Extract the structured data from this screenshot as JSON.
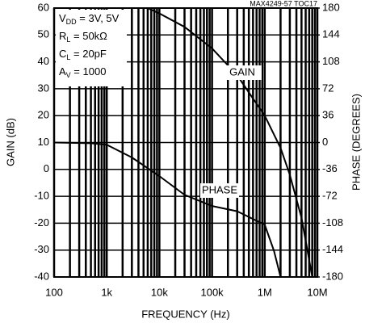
{
  "chart_data": {
    "type": "line",
    "code": "MAX4249-57 TOC17",
    "x_label": "FREQUENCY (Hz)",
    "y_label": "GAIN (dB)",
    "y2_label": "PHASE (DEGREES)",
    "x_scale": "log",
    "grid": true,
    "minor_grid": true,
    "xlim": [
      100,
      10000000
    ],
    "xticks": [
      {
        "value": 100,
        "label": "100"
      },
      {
        "value": 1000,
        "label": "1k"
      },
      {
        "value": 10000,
        "label": "10k"
      },
      {
        "value": 100000,
        "label": "100k"
      },
      {
        "value": 1000000,
        "label": "1M"
      },
      {
        "value": 10000000,
        "label": "10M"
      }
    ],
    "ylim": [
      -40,
      60
    ],
    "yticks": [
      -40,
      -30,
      -20,
      -10,
      0,
      10,
      20,
      30,
      40,
      50,
      60
    ],
    "y2lim": [
      -180,
      180
    ],
    "y2ticks": [
      -180,
      -144,
      -108,
      -72,
      -36,
      0,
      36,
      72,
      108,
      144,
      180
    ],
    "annotations": [
      {
        "symbol": "V",
        "subscript": "DD",
        "text": " = 3V, 5V"
      },
      {
        "symbol": "R",
        "subscript": "L",
        "text": " = 50kΩ"
      },
      {
        "symbol": "C",
        "subscript": "L",
        "text": " = 20pF"
      },
      {
        "symbol": "A",
        "subscript": "V",
        "text": " = 1000"
      }
    ],
    "series": [
      {
        "name": "GAIN",
        "color": "#000000",
        "x": [
          6000,
          10000,
          30000,
          100000,
          300000,
          1000000,
          2000000,
          3000000,
          5000000,
          8000000
        ],
        "values": [
          60,
          58,
          53,
          45,
          35,
          20,
          8,
          -2,
          -18,
          -40
        ]
      },
      {
        "name": "PHASE",
        "color": "#000000",
        "axis": "y2",
        "x": [
          100,
          500,
          1000,
          3000,
          10000,
          30000,
          100000,
          300000,
          1000000,
          1500000,
          2000000
        ],
        "values": [
          0,
          -1,
          -3,
          -20,
          -45,
          -70,
          -85,
          -92,
          -110,
          -145,
          -180
        ]
      }
    ]
  }
}
